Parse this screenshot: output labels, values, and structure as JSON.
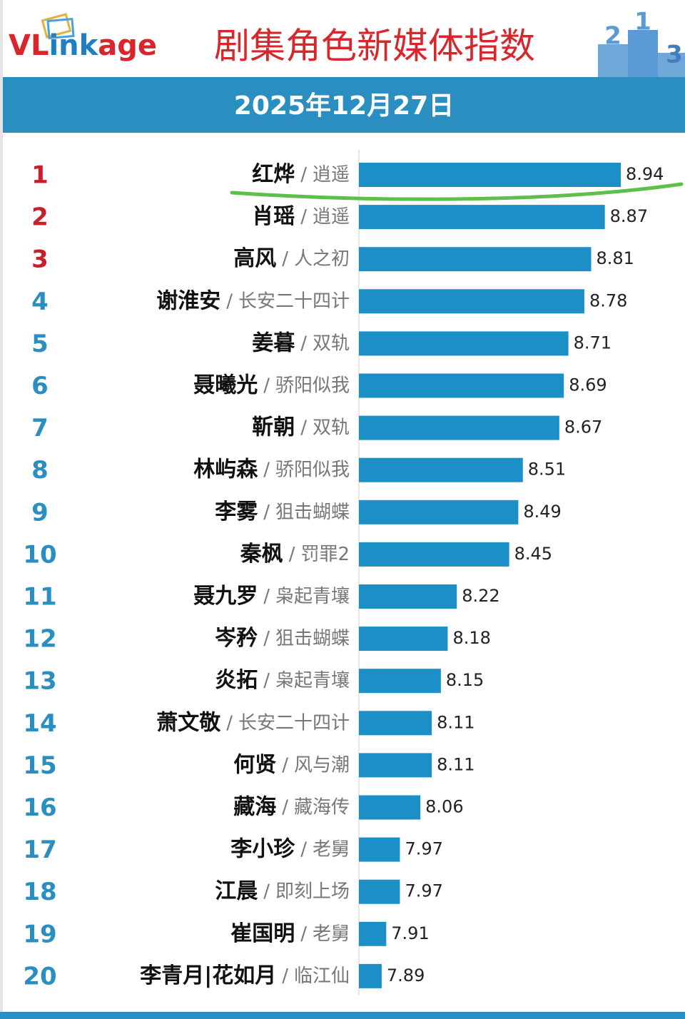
{
  "chart_data": {
    "type": "bar",
    "orientation": "horizontal",
    "logo": [
      "VL",
      "ink",
      "age"
    ],
    "title": "剧集角色新媒体指数",
    "subtitle": "2025年12月27日",
    "podium": [
      "2",
      "1",
      "3"
    ],
    "separator": "/",
    "ranks": [
      1,
      2,
      3,
      4,
      5,
      6,
      7,
      8,
      9,
      10,
      11,
      12,
      13,
      14,
      15,
      16,
      17,
      18,
      19,
      20
    ],
    "categories": [
      "红烨",
      "肖瑶",
      "高风",
      "谢淮安",
      "姜暮",
      "聂曦光",
      "靳朝",
      "林屿森",
      "李雾",
      "秦枫",
      "聂九罗",
      "岑矜",
      "炎拓",
      "萧文敬",
      "何贤",
      "藏海",
      "李小珍",
      "江晨",
      "崔国明",
      "李青月|花如月"
    ],
    "dramas": [
      "逍遥",
      "逍遥",
      "人之初",
      "长安二十四计",
      "双轨",
      "骄阳似我",
      "双轨",
      "骄阳似我",
      "狙击蝴蝶",
      "罚罪2",
      "枭起青壤",
      "狙击蝴蝶",
      "枭起青壤",
      "长安二十四计",
      "风与潮",
      "藏海传",
      "老舅",
      "即刻上场",
      "老舅",
      "临江仙"
    ],
    "values": [
      8.94,
      8.87,
      8.81,
      8.78,
      8.71,
      8.69,
      8.67,
      8.51,
      8.49,
      8.45,
      8.22,
      8.18,
      8.15,
      8.11,
      8.11,
      8.06,
      7.97,
      7.97,
      7.91,
      7.89
    ],
    "xlim": [
      7.79,
      8.94
    ],
    "color": "#1d8fc7",
    "title_color": "#d8262c",
    "top_rank_color": "#c8202a",
    "rank_color": "#2a8fc0",
    "top_ranks": 3
  }
}
